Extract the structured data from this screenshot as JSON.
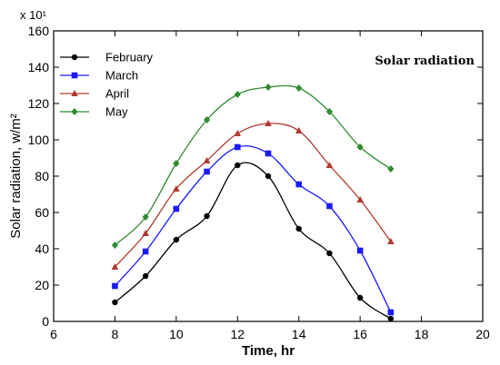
{
  "chart_data": {
    "type": "line",
    "title": "",
    "annotation": "Solar radiation",
    "xlabel": "Time, hr",
    "ylabel": "Solar radiation, w/m²",
    "y_multiplier": "x 10¹",
    "xlim": [
      6,
      20
    ],
    "ylim": [
      0,
      160
    ],
    "xticks": [
      6,
      8,
      10,
      12,
      14,
      16,
      18,
      20
    ],
    "yticks": [
      0,
      20,
      40,
      60,
      80,
      100,
      120,
      140,
      160
    ],
    "grid": false,
    "legend_position": "top-left",
    "x": [
      8,
      9,
      10,
      11,
      12,
      13,
      14,
      15,
      16,
      17
    ],
    "series": [
      {
        "name": "February",
        "color": "#000000",
        "marker": "circle",
        "values": [
          10.5,
          25,
          45,
          58,
          86,
          80,
          51,
          37.5,
          13,
          1.5
        ]
      },
      {
        "name": "March",
        "color": "#1a1aff",
        "marker": "square",
        "values": [
          19.5,
          38.5,
          62,
          82.5,
          96,
          92.5,
          75.5,
          63.5,
          39,
          5
        ]
      },
      {
        "name": "April",
        "color": "#b03a2e",
        "marker": "triangle",
        "values": [
          30,
          48.5,
          73,
          88.5,
          103.5,
          109,
          105,
          86,
          67,
          44
        ]
      },
      {
        "name": "May",
        "color": "#2e8b2e",
        "marker": "diamond",
        "values": [
          42,
          57.5,
          87,
          111,
          125,
          129,
          128.5,
          115.5,
          96,
          84
        ]
      }
    ]
  }
}
